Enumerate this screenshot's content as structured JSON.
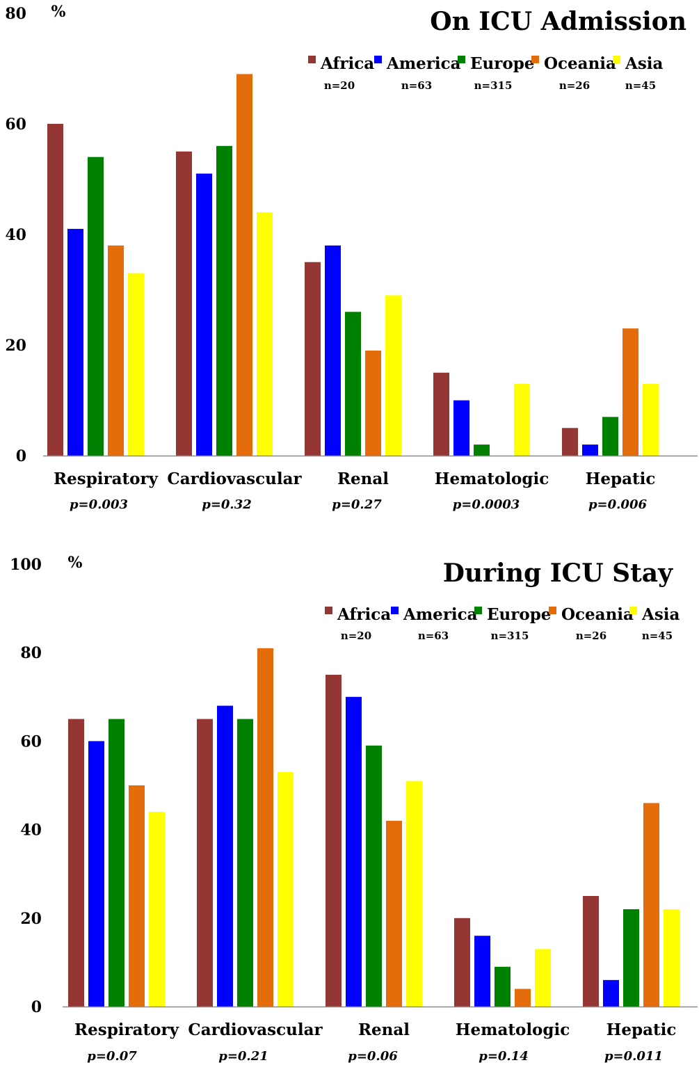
{
  "chart_data": [
    {
      "type": "bar",
      "title": "On  ICU Admission",
      "ylabel": "%",
      "ylim": [
        0,
        80
      ],
      "yticks": [
        0,
        20,
        40,
        60,
        80
      ],
      "categories": [
        "Respiratory",
        "Cardiovascular",
        "Renal",
        "Hematologic",
        "Hepatic"
      ],
      "p_values": [
        "p=0.003",
        "p=0.32",
        "p=0.27",
        "p=0.0003",
        "p=0.006"
      ],
      "legend_placement": "top-right",
      "series": [
        {
          "name": "Africa",
          "n": "n=20",
          "color": "#943634",
          "values": [
            60,
            55,
            35,
            15,
            5
          ]
        },
        {
          "name": "America",
          "n": "n=63",
          "color": "#0000ff",
          "values": [
            41,
            51,
            38,
            10,
            2
          ]
        },
        {
          "name": "Europe",
          "n": "n=315",
          "color": "#008000",
          "values": [
            54,
            56,
            26,
            2,
            7
          ]
        },
        {
          "name": "Oceania",
          "n": "n=26",
          "color": "#e46c0a",
          "values": [
            38,
            69,
            19,
            0,
            23
          ]
        },
        {
          "name": "Asia",
          "n": "n=45",
          "color": "#ffff00",
          "values": [
            33,
            44,
            29,
            13,
            13
          ]
        }
      ]
    },
    {
      "type": "bar",
      "title": "During ICU Stay",
      "ylabel": "%",
      "ylim": [
        0,
        100
      ],
      "yticks": [
        0,
        20,
        40,
        60,
        80,
        100
      ],
      "categories": [
        "Respiratory",
        "Cardiovascular",
        "Renal",
        "Hematologic",
        "Hepatic"
      ],
      "p_values": [
        "p=0.07",
        "p=0.21",
        "p=0.06",
        "p=0.14",
        "p=0.011"
      ],
      "legend_placement": "top-right",
      "series": [
        {
          "name": "Africa",
          "n": "n=20",
          "color": "#943634",
          "values": [
            65,
            65,
            75,
            20,
            25
          ]
        },
        {
          "name": "America",
          "n": "n=63",
          "color": "#0000ff",
          "values": [
            60,
            68,
            70,
            16,
            6
          ]
        },
        {
          "name": "Europe",
          "n": "n=315",
          "color": "#008000",
          "values": [
            65,
            65,
            59,
            9,
            22
          ]
        },
        {
          "name": "Oceania",
          "n": "n=26",
          "color": "#e46c0a",
          "values": [
            50,
            81,
            42,
            4,
            46
          ]
        },
        {
          "name": "Asia",
          "n": "n=45",
          "color": "#ffff00",
          "values": [
            44,
            53,
            51,
            13,
            22
          ]
        }
      ]
    }
  ]
}
